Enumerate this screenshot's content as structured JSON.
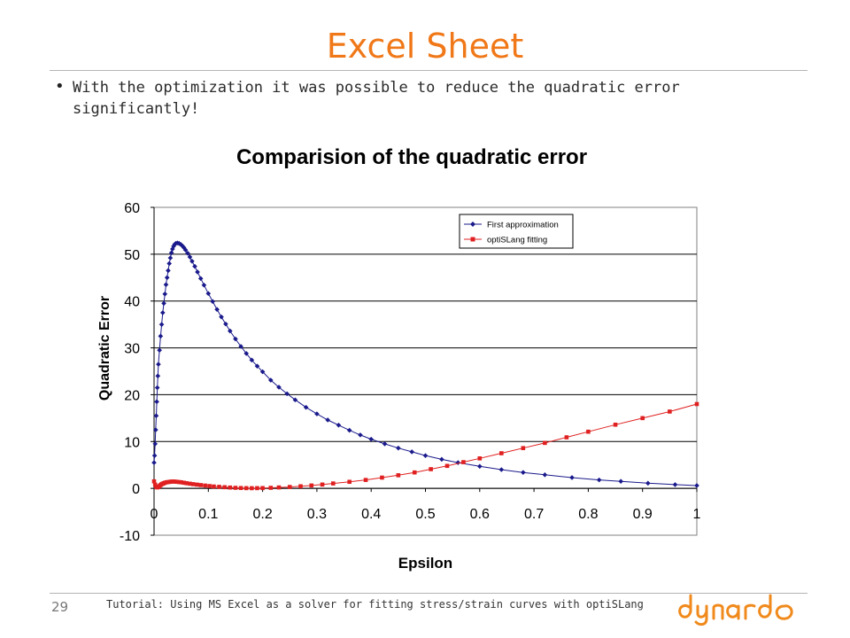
{
  "slide": {
    "title": "Excel Sheet",
    "bullet": "With the optimization it was possible to reduce the quadratic error significantly!",
    "page_number": "29",
    "footer": "Tutorial: Using MS Excel as a solver for fitting stress/strain curves with optiSLang",
    "logo_text": "dynardo",
    "accent_color": "#f07818"
  },
  "chart_data": {
    "type": "scatter",
    "title": "Comparision of the quadratic error",
    "xlabel": "Epsilon",
    "ylabel": "Quadratic Error",
    "xlim": [
      0,
      1
    ],
    "ylim": [
      -10,
      60
    ],
    "xticks": [
      "0",
      "0.1",
      "0.2",
      "0.3",
      "0.4",
      "0.5",
      "0.6",
      "0.7",
      "0.8",
      "0.9",
      "1"
    ],
    "yticks": [
      "-10",
      "0",
      "10",
      "20",
      "30",
      "40",
      "50",
      "60"
    ],
    "grid": "horizontal",
    "legend_position": "top-right",
    "series": [
      {
        "name": "First approximation",
        "color": "#1a1a8c",
        "marker": "diamond",
        "points": [
          [
            0.0,
            5.5
          ],
          [
            0.001,
            7.0
          ],
          [
            0.002,
            9.5
          ],
          [
            0.003,
            12.5
          ],
          [
            0.004,
            15.5
          ],
          [
            0.005,
            18.5
          ],
          [
            0.006,
            21.5
          ],
          [
            0.007,
            24.0
          ],
          [
            0.008,
            26.5
          ],
          [
            0.01,
            29.5
          ],
          [
            0.012,
            32.5
          ],
          [
            0.014,
            35.0
          ],
          [
            0.016,
            37.5
          ],
          [
            0.018,
            39.5
          ],
          [
            0.02,
            41.5
          ],
          [
            0.022,
            43.5
          ],
          [
            0.024,
            45.0
          ],
          [
            0.026,
            46.5
          ],
          [
            0.028,
            48.0
          ],
          [
            0.03,
            49.2
          ],
          [
            0.032,
            50.3
          ],
          [
            0.034,
            51.1
          ],
          [
            0.036,
            51.7
          ],
          [
            0.038,
            52.1
          ],
          [
            0.04,
            52.3
          ],
          [
            0.043,
            52.4
          ],
          [
            0.046,
            52.3
          ],
          [
            0.049,
            52.1
          ],
          [
            0.052,
            51.8
          ],
          [
            0.055,
            51.4
          ],
          [
            0.058,
            50.9
          ],
          [
            0.062,
            50.2
          ],
          [
            0.066,
            49.4
          ],
          [
            0.07,
            48.5
          ],
          [
            0.075,
            47.4
          ],
          [
            0.08,
            46.2
          ],
          [
            0.086,
            44.8
          ],
          [
            0.092,
            43.4
          ],
          [
            0.1,
            41.6
          ],
          [
            0.108,
            39.9
          ],
          [
            0.116,
            38.2
          ],
          [
            0.124,
            36.6
          ],
          [
            0.132,
            35.1
          ],
          [
            0.14,
            33.6
          ],
          [
            0.15,
            31.9
          ],
          [
            0.16,
            30.3
          ],
          [
            0.17,
            28.8
          ],
          [
            0.18,
            27.4
          ],
          [
            0.19,
            26.1
          ],
          [
            0.2,
            24.9
          ],
          [
            0.215,
            23.1
          ],
          [
            0.23,
            21.6
          ],
          [
            0.245,
            20.2
          ],
          [
            0.26,
            18.9
          ],
          [
            0.28,
            17.3
          ],
          [
            0.3,
            15.9
          ],
          [
            0.32,
            14.6
          ],
          [
            0.34,
            13.5
          ],
          [
            0.36,
            12.4
          ],
          [
            0.38,
            11.4
          ],
          [
            0.4,
            10.5
          ],
          [
            0.425,
            9.5
          ],
          [
            0.45,
            8.6
          ],
          [
            0.475,
            7.8
          ],
          [
            0.5,
            7.0
          ],
          [
            0.53,
            6.2
          ],
          [
            0.56,
            5.5
          ],
          [
            0.6,
            4.7
          ],
          [
            0.64,
            4.0
          ],
          [
            0.68,
            3.4
          ],
          [
            0.72,
            2.9
          ],
          [
            0.77,
            2.3
          ],
          [
            0.82,
            1.8
          ],
          [
            0.86,
            1.5
          ],
          [
            0.91,
            1.1
          ],
          [
            0.96,
            0.8
          ],
          [
            1.0,
            0.6
          ]
        ]
      },
      {
        "name": "optiSLang fitting",
        "color": "#e02020",
        "marker": "square",
        "points": [
          [
            0.0,
            1.5
          ],
          [
            0.002,
            0.8
          ],
          [
            0.004,
            0.3
          ],
          [
            0.006,
            0.2
          ],
          [
            0.008,
            0.3
          ],
          [
            0.01,
            0.5
          ],
          [
            0.012,
            0.7
          ],
          [
            0.014,
            0.9
          ],
          [
            0.016,
            1.0
          ],
          [
            0.018,
            1.1
          ],
          [
            0.02,
            1.2
          ],
          [
            0.023,
            1.3
          ],
          [
            0.026,
            1.35
          ],
          [
            0.029,
            1.4
          ],
          [
            0.032,
            1.45
          ],
          [
            0.035,
            1.45
          ],
          [
            0.038,
            1.45
          ],
          [
            0.042,
            1.4
          ],
          [
            0.046,
            1.35
          ],
          [
            0.05,
            1.3
          ],
          [
            0.055,
            1.2
          ],
          [
            0.06,
            1.1
          ],
          [
            0.066,
            1.0
          ],
          [
            0.072,
            0.9
          ],
          [
            0.079,
            0.8
          ],
          [
            0.086,
            0.7
          ],
          [
            0.094,
            0.6
          ],
          [
            0.102,
            0.5
          ],
          [
            0.11,
            0.4
          ],
          [
            0.12,
            0.33
          ],
          [
            0.13,
            0.25
          ],
          [
            0.14,
            0.18
          ],
          [
            0.15,
            0.12
          ],
          [
            0.16,
            0.08
          ],
          [
            0.17,
            0.05
          ],
          [
            0.18,
            0.04
          ],
          [
            0.19,
            0.05
          ],
          [
            0.2,
            0.07
          ],
          [
            0.215,
            0.12
          ],
          [
            0.23,
            0.2
          ],
          [
            0.25,
            0.3
          ],
          [
            0.27,
            0.45
          ],
          [
            0.29,
            0.62
          ],
          [
            0.31,
            0.82
          ],
          [
            0.33,
            1.05
          ],
          [
            0.36,
            1.4
          ],
          [
            0.39,
            1.8
          ],
          [
            0.42,
            2.3
          ],
          [
            0.45,
            2.8
          ],
          [
            0.48,
            3.4
          ],
          [
            0.51,
            4.1
          ],
          [
            0.54,
            4.8
          ],
          [
            0.57,
            5.6
          ],
          [
            0.6,
            6.4
          ],
          [
            0.64,
            7.5
          ],
          [
            0.68,
            8.6
          ],
          [
            0.72,
            9.7
          ],
          [
            0.76,
            10.9
          ],
          [
            0.8,
            12.1
          ],
          [
            0.85,
            13.6
          ],
          [
            0.9,
            15.0
          ],
          [
            0.95,
            16.4
          ],
          [
            1.0,
            18.0
          ]
        ]
      }
    ]
  }
}
